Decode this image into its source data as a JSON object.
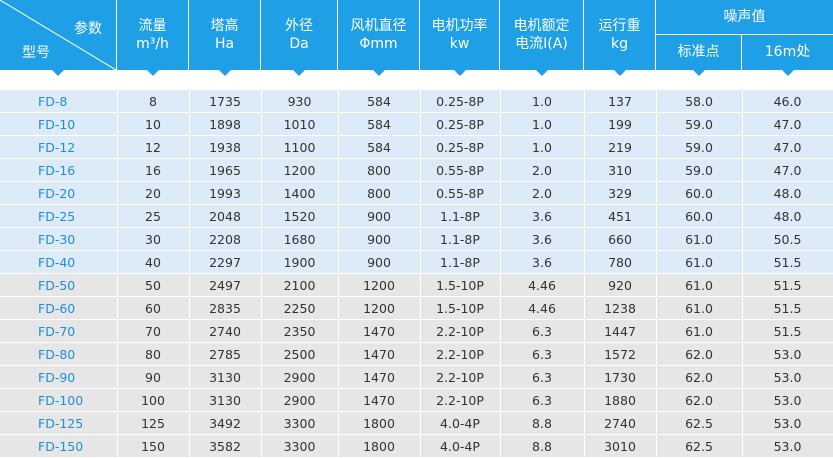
{
  "header": {
    "corner_top": "参数",
    "corner_bottom": "型号",
    "cols": [
      {
        "l1": "流量",
        "l2": "m³/h"
      },
      {
        "l1": "塔高",
        "l2": "Ha"
      },
      {
        "l1": "外径",
        "l2": "Da"
      },
      {
        "l1": "风机直径",
        "l2": "Φmm"
      },
      {
        "l1": "电机功率",
        "l2": "kw"
      },
      {
        "l1": "电机额定",
        "l2": "电流I(A)"
      },
      {
        "l1": "运行重",
        "l2": "kg"
      }
    ],
    "noise_group": "噪声值",
    "noise_sub": [
      "标准点",
      "16m处"
    ]
  },
  "rows": [
    {
      "group": "blue",
      "cells": [
        "FD-8",
        "8",
        "1735",
        "930",
        "584",
        "0.25-8P",
        "1.0",
        "137",
        "58.0",
        "46.0"
      ]
    },
    {
      "group": "blue",
      "cells": [
        "FD-10",
        "10",
        "1898",
        "1010",
        "584",
        "0.25-8P",
        "1.0",
        "199",
        "59.0",
        "47.0"
      ]
    },
    {
      "group": "blue",
      "cells": [
        "FD-12",
        "12",
        "1938",
        "1100",
        "584",
        "0.25-8P",
        "1.0",
        "219",
        "59.0",
        "47.0"
      ]
    },
    {
      "group": "blue",
      "cells": [
        "FD-16",
        "16",
        "1965",
        "1200",
        "800",
        "0.55-8P",
        "2.0",
        "310",
        "59.0",
        "47.0"
      ]
    },
    {
      "group": "blue",
      "cells": [
        "FD-20",
        "20",
        "1993",
        "1400",
        "800",
        "0.55-8P",
        "2.0",
        "329",
        "60.0",
        "48.0"
      ]
    },
    {
      "group": "blue",
      "cells": [
        "FD-25",
        "25",
        "2048",
        "1520",
        "900",
        "1.1-8P",
        "3.6",
        "451",
        "60.0",
        "48.0"
      ]
    },
    {
      "group": "blue",
      "cells": [
        "FD-30",
        "30",
        "2208",
        "1680",
        "900",
        "1.1-8P",
        "3.6",
        "660",
        "61.0",
        "50.5"
      ]
    },
    {
      "group": "blue",
      "cells": [
        "FD-40",
        "40",
        "2297",
        "1900",
        "900",
        "1.1-8P",
        "3.6",
        "780",
        "61.0",
        "51.5"
      ]
    },
    {
      "group": "gray",
      "cells": [
        "FD-50",
        "50",
        "2497",
        "2100",
        "1200",
        "1.5-10P",
        "4.46",
        "920",
        "61.0",
        "51.5"
      ]
    },
    {
      "group": "gray",
      "cells": [
        "FD-60",
        "60",
        "2835",
        "2250",
        "1200",
        "1.5-10P",
        "4.46",
        "1238",
        "61.0",
        "51.5"
      ]
    },
    {
      "group": "gray",
      "cells": [
        "FD-70",
        "70",
        "2740",
        "2350",
        "1470",
        "2.2-10P",
        "6.3",
        "1447",
        "61.0",
        "51.5"
      ]
    },
    {
      "group": "gray",
      "cells": [
        "FD-80",
        "80",
        "2785",
        "2500",
        "1470",
        "2.2-10P",
        "6.3",
        "1572",
        "62.0",
        "53.0"
      ]
    },
    {
      "group": "gray",
      "cells": [
        "FD-90",
        "90",
        "3130",
        "2900",
        "1470",
        "2.2-10P",
        "6.3",
        "1730",
        "62.0",
        "53.0"
      ]
    },
    {
      "group": "gray",
      "cells": [
        "FD-100",
        "100",
        "3130",
        "2900",
        "1470",
        "2.2-10P",
        "6.3",
        "1880",
        "62.0",
        "53.0"
      ]
    },
    {
      "group": "gray",
      "cells": [
        "FD-125",
        "125",
        "3492",
        "3300",
        "1800",
        "4.0-4P",
        "8.8",
        "2740",
        "62.5",
        "53.0"
      ]
    },
    {
      "group": "gray",
      "cells": [
        "FD-150",
        "150",
        "3582",
        "3300",
        "1800",
        "4.0-4P",
        "8.8",
        "3010",
        "62.5",
        "53.0"
      ]
    }
  ],
  "colors": {
    "header_blue": "#1fa0e6",
    "row_blue": "#dcebf7",
    "row_gray": "#e6e6e6",
    "model_text": "#1e8fd6"
  }
}
